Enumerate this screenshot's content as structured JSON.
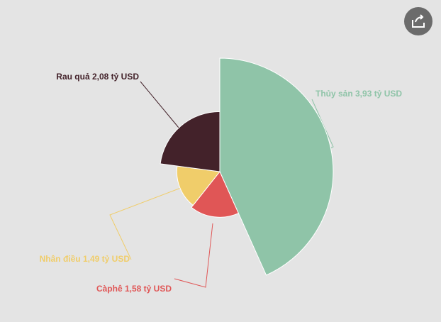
{
  "chart_data": {
    "type": "pie",
    "radius_by_value": true,
    "values": [
      3.93,
      1.58,
      1.49,
      2.08
    ],
    "value_labels": [
      "Thủy sản 3,93 tỷ USD",
      "Càphê 1,58 tỷ USD",
      "Nhân điều 1,49 tỷ USD",
      "Rau quả 2,08 tỷ USD"
    ],
    "colors": [
      "#8fc4a8",
      "#e05656",
      "#f0cd6a",
      "#43222a"
    ]
  }
}
